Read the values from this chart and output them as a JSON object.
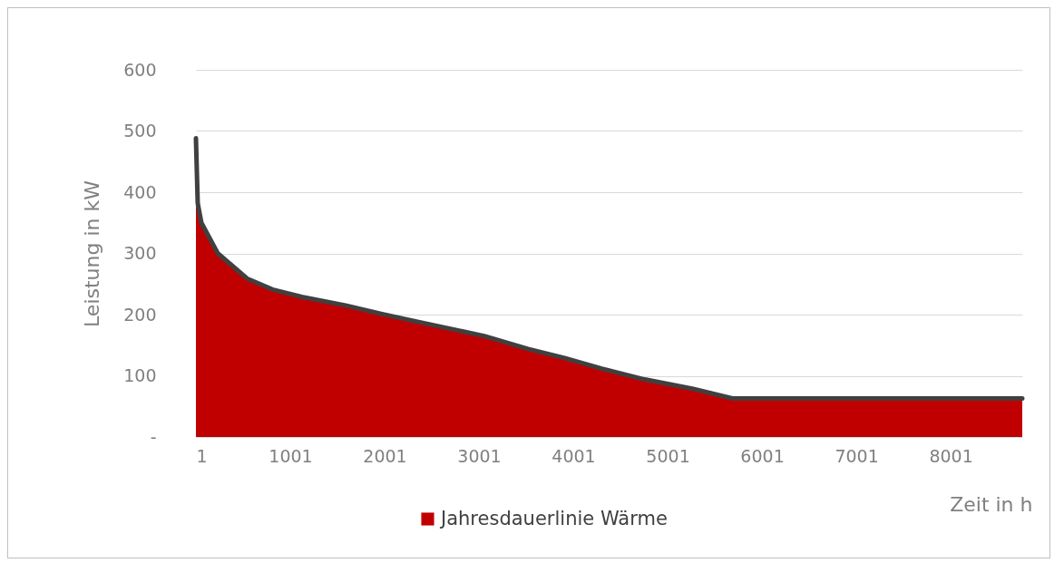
{
  "chart_data": {
    "type": "area",
    "xlabel": "Zeit in h",
    "ylabel": "Leistung in kW",
    "x": [
      1,
      20,
      59,
      233,
      543,
      813,
      1123,
      1587,
      1974,
      2361,
      3057,
      3521,
      3908,
      4295,
      4759,
      5262,
      5688,
      8760
    ],
    "xlim": [
      1,
      8760
    ],
    "xticks": [
      1,
      1001,
      2001,
      3001,
      4001,
      5001,
      6001,
      7001,
      8001
    ],
    "ylim": [
      0,
      600
    ],
    "yticks": [
      {
        "value": 0,
        "label": "-"
      },
      100,
      200,
      300,
      400,
      500,
      600
    ],
    "grid": "y",
    "legend": "bottom",
    "series": [
      {
        "name": "Jahresdauerlinie Wärme",
        "color": "#c00000",
        "values": [
          488,
          382,
          350,
          300,
          259,
          241,
          229,
          215,
          201,
          188,
          165,
          144,
          129,
          112,
          94,
          79,
          63,
          63
        ]
      }
    ]
  }
}
